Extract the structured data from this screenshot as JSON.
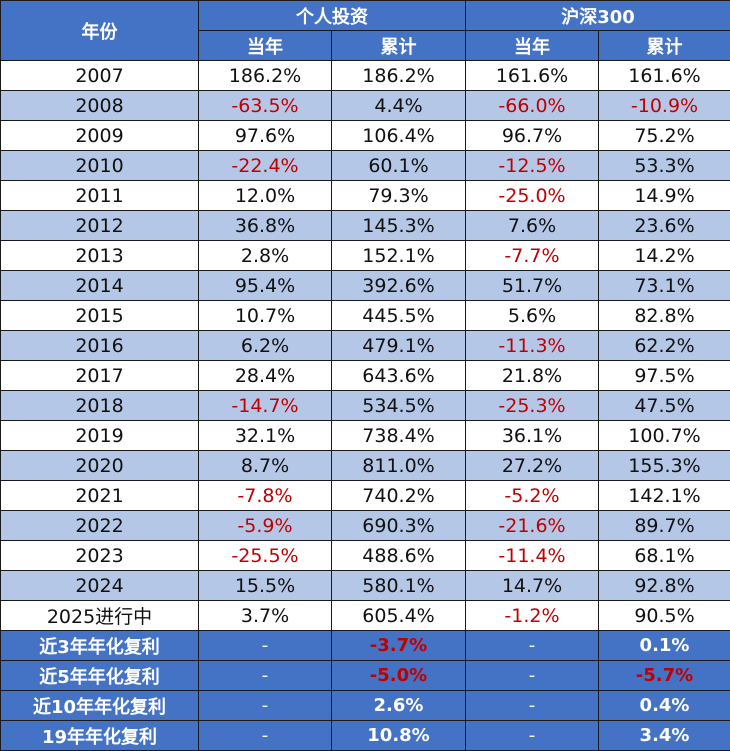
{
  "header": {
    "year_label": "年份",
    "group1": "个人投资",
    "group2": "沪深300",
    "sub": [
      "当年",
      "累计",
      "当年",
      "累计"
    ]
  },
  "rows": [
    {
      "year": "2007",
      "cells": [
        "186.2%",
        "186.2%",
        "161.6%",
        "161.6%"
      ]
    },
    {
      "year": "2008",
      "cells": [
        "-63.5%",
        "4.4%",
        "-66.0%",
        "-10.9%"
      ]
    },
    {
      "year": "2009",
      "cells": [
        "97.6%",
        "106.4%",
        "96.7%",
        "75.2%"
      ]
    },
    {
      "year": "2010",
      "cells": [
        "-22.4%",
        "60.1%",
        "-12.5%",
        "53.3%"
      ]
    },
    {
      "year": "2011",
      "cells": [
        "12.0%",
        "79.3%",
        "-25.0%",
        "14.9%"
      ]
    },
    {
      "year": "2012",
      "cells": [
        "36.8%",
        "145.3%",
        "7.6%",
        "23.6%"
      ]
    },
    {
      "year": "2013",
      "cells": [
        "2.8%",
        "152.1%",
        "-7.7%",
        "14.2%"
      ]
    },
    {
      "year": "2014",
      "cells": [
        "95.4%",
        "392.6%",
        "51.7%",
        "73.1%"
      ]
    },
    {
      "year": "2015",
      "cells": [
        "10.7%",
        "445.5%",
        "5.6%",
        "82.8%"
      ]
    },
    {
      "year": "2016",
      "cells": [
        "6.2%",
        "479.1%",
        "-11.3%",
        "62.2%"
      ]
    },
    {
      "year": "2017",
      "cells": [
        "28.4%",
        "643.6%",
        "21.8%",
        "97.5%"
      ]
    },
    {
      "year": "2018",
      "cells": [
        "-14.7%",
        "534.5%",
        "-25.3%",
        "47.5%"
      ]
    },
    {
      "year": "2019",
      "cells": [
        "32.1%",
        "738.4%",
        "36.1%",
        "100.7%"
      ]
    },
    {
      "year": "2020",
      "cells": [
        "8.7%",
        "811.0%",
        "27.2%",
        "155.3%"
      ]
    },
    {
      "year": "2021",
      "cells": [
        "-7.8%",
        "740.2%",
        "-5.2%",
        "142.1%"
      ]
    },
    {
      "year": "2022",
      "cells": [
        "-5.9%",
        "690.3%",
        "-21.6%",
        "89.7%"
      ]
    },
    {
      "year": "2023",
      "cells": [
        "-25.5%",
        "488.6%",
        "-11.4%",
        "68.1%"
      ]
    },
    {
      "year": "2024",
      "cells": [
        "15.5%",
        "580.1%",
        "14.7%",
        "92.8%"
      ]
    },
    {
      "year": "2025进行中",
      "cells": [
        "3.7%",
        "605.4%",
        "-1.2%",
        "90.5%"
      ]
    }
  ],
  "summary": [
    {
      "label": "近3年年化复利",
      "cells": [
        "-",
        "-3.7%",
        "-",
        "0.1%"
      ]
    },
    {
      "label": "近5年年化复利",
      "cells": [
        "-",
        "-5.0%",
        "-",
        "-5.7%"
      ]
    },
    {
      "label": "近10年年化复利",
      "cells": [
        "-",
        "2.6%",
        "-",
        "0.4%"
      ]
    },
    {
      "label": "19年年化复利",
      "cells": [
        "-",
        "10.8%",
        "-",
        "3.4%"
      ]
    }
  ],
  "colors": {
    "header_bg": "#4472c4",
    "stripe_bg": "#b4c7e7",
    "negative_text": "#c00000"
  }
}
